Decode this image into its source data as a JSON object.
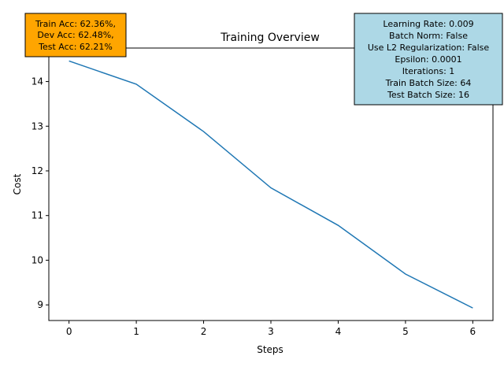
{
  "chart_data": {
    "type": "line",
    "title": "Training Overview",
    "xlabel": "Steps",
    "ylabel": "Cost",
    "x": [
      0,
      1,
      2,
      3,
      4,
      5,
      6
    ],
    "series": [
      {
        "values": [
          14.46,
          13.94,
          12.88,
          11.62,
          10.78,
          9.69,
          8.93
        ],
        "color": "#1f77b4"
      }
    ],
    "xlim": [
      -0.3,
      6.3
    ],
    "ylim": [
      8.65,
      14.75
    ],
    "xticks": [
      "0",
      "1",
      "2",
      "3",
      "4",
      "5",
      "6"
    ],
    "yticks": [
      "9",
      "10",
      "11",
      "12",
      "13",
      "14"
    ],
    "grid": false,
    "annotations": {
      "accuracy": {
        "lines": [
          "Train Acc: 62.36%,",
          "Dev Acc: 62.48%,",
          "Test Acc: 62.21%"
        ],
        "background": "#ffa500"
      },
      "hyperparameters": {
        "lines": [
          "Learning Rate: 0.009",
          "Batch Norm: False",
          "Use L2 Regularization: False",
          "Epsilon: 0.0001",
          "Iterations: 1",
          "Train Batch Size: 64",
          "Test Batch Size: 16"
        ],
        "background": "#add8e6"
      }
    }
  }
}
